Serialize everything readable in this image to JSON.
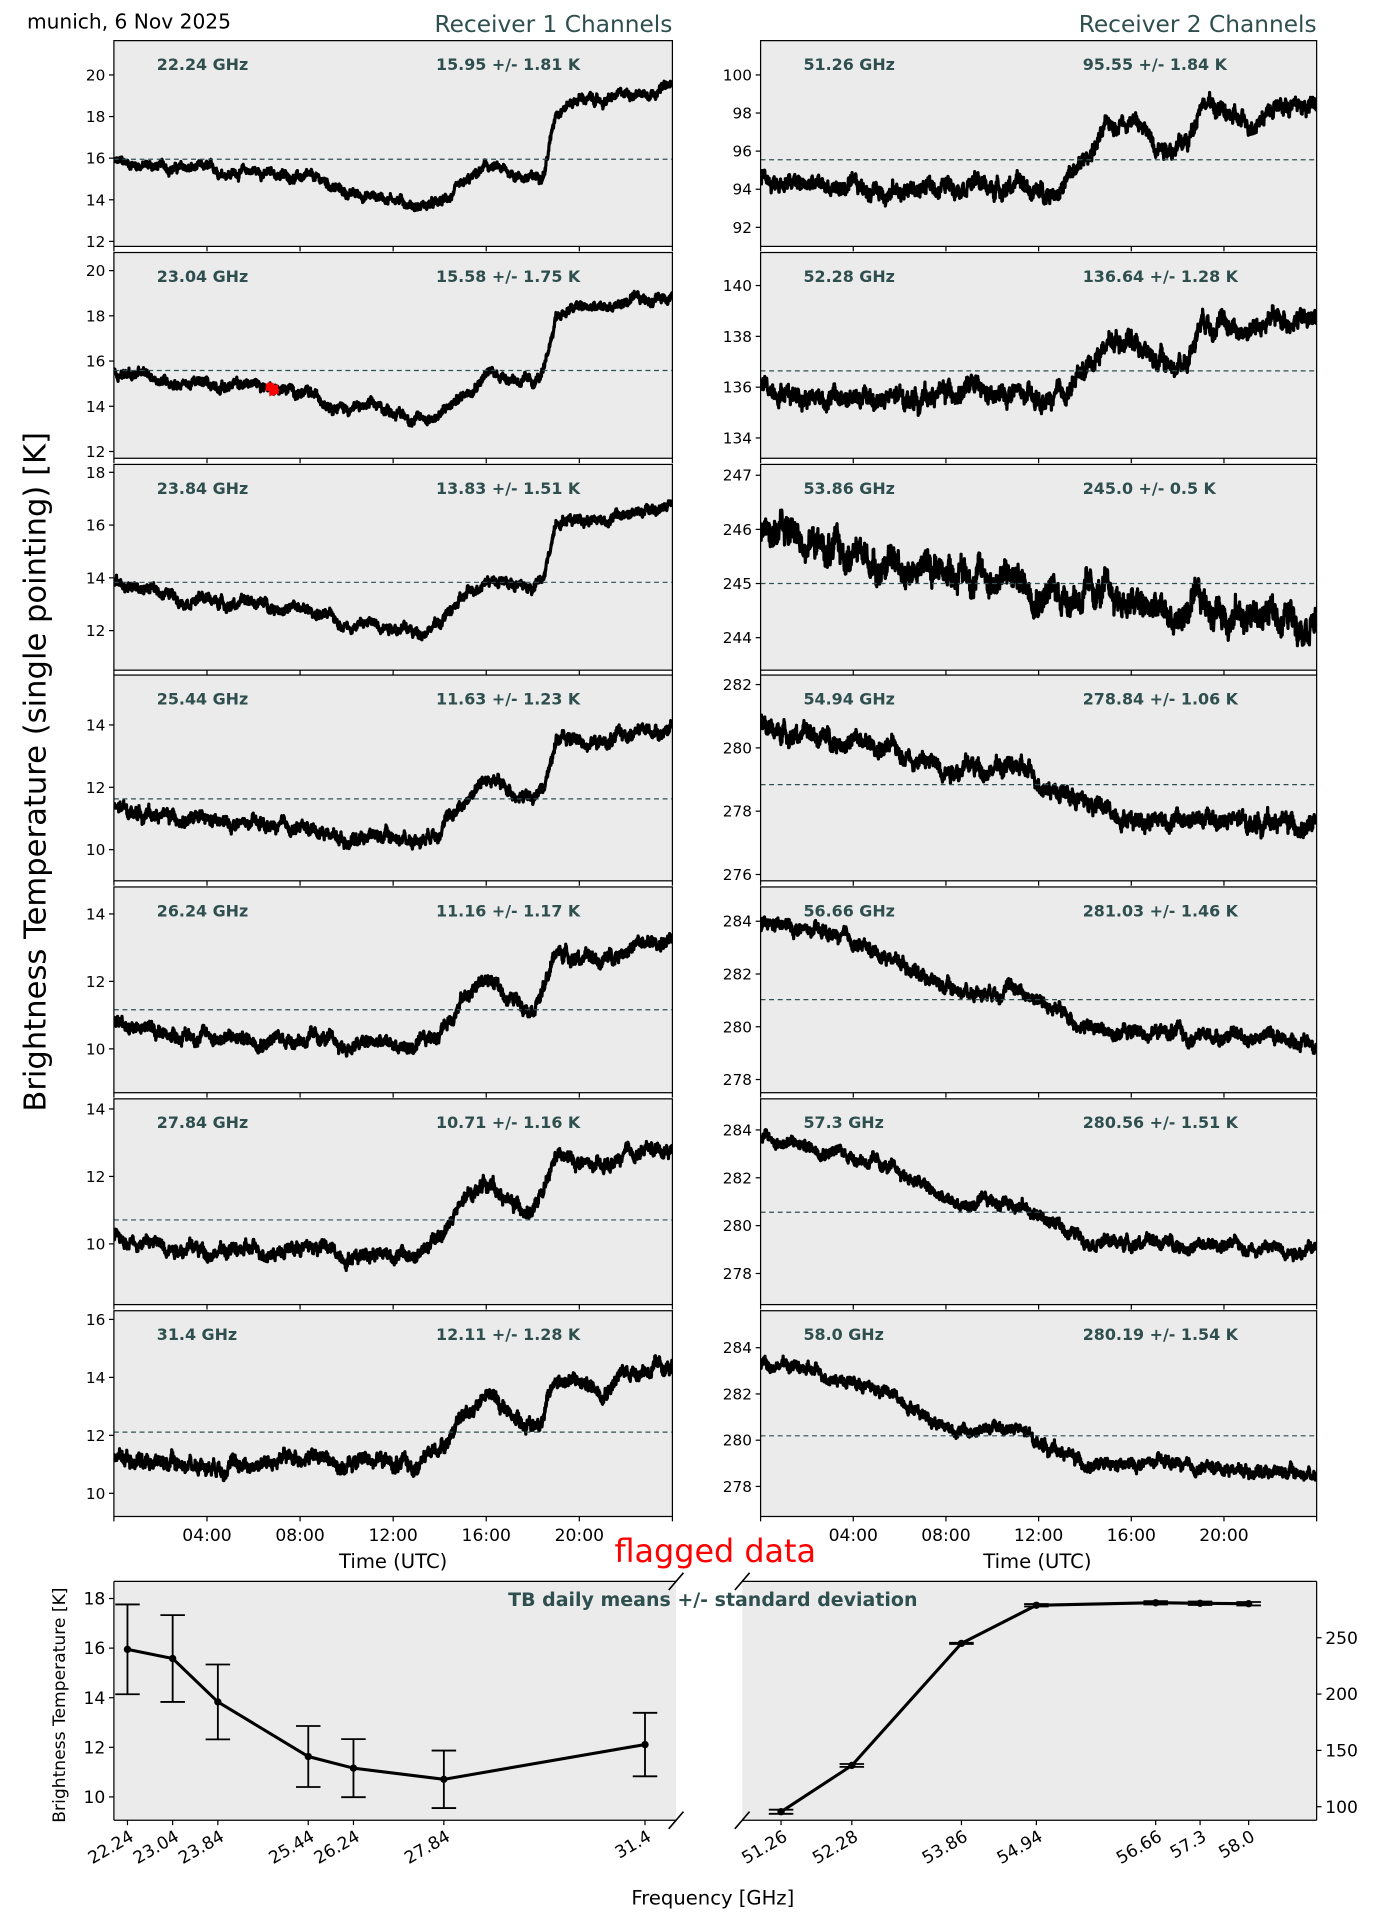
{
  "header": {
    "location_date": "munich, 6 Nov 2025",
    "receiver1_title": "Receiver 1 Channels",
    "receiver2_title": "Receiver 2 Channels"
  },
  "labels": {
    "ylabel_main": "Brightness Temperature (single pointing) [K]",
    "xlabel_time": "Time (UTC)",
    "flagged": "flagged data",
    "summary_title": "TB daily means +/- standard deviation",
    "summary_ylabel": "Brightness Temperature [K]",
    "summary_xlabel": "Frequency [GHz]"
  },
  "colors": {
    "text_accent": "#2f4f4f",
    "flagged": "#ff0000",
    "panel_bg": "#ebebeb",
    "data": "#000000"
  },
  "chart_data": [
    {
      "type": "line",
      "receiver": 1,
      "freq_label": "22.24 GHz",
      "stats_label": "15.95 +/- 1.81 K",
      "mean": 15.95,
      "ylim": [
        11.76,
        21.65
      ],
      "yticks": [
        12,
        14,
        16,
        18,
        20
      ],
      "noise": 0.18,
      "values": [
        15.8,
        15.7,
        15.6,
        15.5,
        15.5,
        15.3,
        15.4,
        15.2,
        15.1,
        14.9,
        14.3,
        14.2,
        14.1,
        13.7,
        13.8,
        14.6,
        15.6,
        15.3,
        15.0,
        15.4,
        18.3,
        18.9,
        18.7,
        19.1,
        19.2,
        19.5
      ]
    },
    {
      "type": "line",
      "receiver": 1,
      "freq_label": "23.04 GHz",
      "stats_label": "15.58 +/- 1.75 K",
      "mean": 15.58,
      "ylim": [
        11.7,
        20.8
      ],
      "yticks": [
        12,
        14,
        16,
        18,
        20
      ],
      "noise": 0.18,
      "flagged_hours": [
        6.6,
        7.0
      ],
      "values": [
        15.5,
        15.4,
        15.2,
        15.0,
        15.0,
        14.9,
        15.0,
        14.8,
        14.6,
        14.3,
        13.9,
        14.0,
        13.8,
        13.4,
        13.6,
        14.5,
        15.5,
        15.3,
        15.0,
        15.5,
        18.0,
        18.4,
        18.3,
        18.6,
        18.7,
        19.0
      ]
    },
    {
      "type": "line",
      "receiver": 1,
      "freq_label": "23.84 GHz",
      "stats_label": "13.83 +/- 1.51 K",
      "mean": 13.83,
      "ylim": [
        10.5,
        18.3
      ],
      "yticks": [
        12,
        14,
        16,
        18
      ],
      "noise": 0.16,
      "values": [
        13.8,
        13.6,
        13.5,
        13.2,
        13.2,
        13.0,
        13.1,
        12.9,
        12.8,
        12.6,
        12.2,
        12.3,
        12.2,
        11.9,
        12.3,
        13.2,
        14.0,
        13.8,
        13.6,
        14.0,
        16.2,
        16.3,
        16.2,
        16.4,
        16.5,
        16.8
      ]
    },
    {
      "type": "line",
      "receiver": 1,
      "freq_label": "25.44 GHz",
      "stats_label": "11.63 +/- 1.23 K",
      "mean": 11.63,
      "ylim": [
        9.0,
        15.6
      ],
      "yticks": [
        10,
        12,
        14
      ],
      "noise": 0.16,
      "values": [
        11.3,
        11.2,
        11.1,
        11.0,
        10.9,
        10.8,
        10.8,
        10.7,
        10.7,
        10.6,
        10.3,
        10.5,
        10.4,
        10.3,
        10.7,
        11.5,
        12.3,
        11.9,
        11.6,
        12.0,
        13.6,
        13.5,
        13.4,
        13.7,
        13.8,
        13.9
      ]
    },
    {
      "type": "line",
      "receiver": 1,
      "freq_label": "26.24 GHz",
      "stats_label": "11.16 +/- 1.17 K",
      "mean": 11.16,
      "ylim": [
        8.7,
        14.8
      ],
      "yticks": [
        10,
        12,
        14
      ],
      "noise": 0.16,
      "values": [
        10.8,
        10.7,
        10.5,
        10.4,
        10.4,
        10.3,
        10.3,
        10.3,
        10.3,
        10.3,
        10.0,
        10.2,
        10.1,
        10.0,
        10.5,
        11.5,
        12.1,
        11.5,
        11.3,
        11.8,
        12.9,
        12.7,
        12.6,
        13.0,
        13.1,
        13.2
      ]
    },
    {
      "type": "line",
      "receiver": 1,
      "freq_label": "27.84 GHz",
      "stats_label": "10.71 +/- 1.16 K",
      "mean": 10.71,
      "ylim": [
        8.2,
        14.3
      ],
      "yticks": [
        10,
        12,
        14
      ],
      "noise": 0.16,
      "values": [
        10.2,
        10.1,
        10.0,
        9.9,
        9.8,
        9.8,
        9.8,
        9.8,
        9.9,
        9.9,
        9.6,
        9.8,
        9.7,
        9.6,
        10.2,
        11.2,
        11.9,
        11.2,
        11.0,
        11.5,
        12.6,
        12.4,
        12.2,
        12.6,
        12.8,
        12.8
      ]
    },
    {
      "type": "line",
      "receiver": 1,
      "freq_label": "31.4 GHz",
      "stats_label": "12.11 +/- 1.28 K",
      "mean": 12.11,
      "ylim": [
        9.2,
        16.3
      ],
      "yticks": [
        10,
        12,
        14,
        16
      ],
      "noise": 0.2,
      "values": [
        11.3,
        11.2,
        11.1,
        11.0,
        11.0,
        11.0,
        11.0,
        11.1,
        11.3,
        11.2,
        10.9,
        11.3,
        11.0,
        10.9,
        11.6,
        12.6,
        13.5,
        12.8,
        12.3,
        12.8,
        14.0,
        13.8,
        13.6,
        14.2,
        14.3,
        14.3
      ]
    },
    {
      "type": "line",
      "receiver": 2,
      "freq_label": "51.26 GHz",
      "stats_label": "95.55 +/- 1.84 K",
      "mean": 95.55,
      "ylim": [
        91.0,
        101.8
      ],
      "yticks": [
        92,
        94,
        96,
        98,
        100
      ],
      "noise": 0.35,
      "values": [
        94.4,
        94.3,
        94.2,
        94.1,
        94.0,
        94.0,
        93.9,
        94.0,
        94.2,
        94.5,
        94.0,
        94.3,
        93.8,
        94.1,
        95.5,
        97.3,
        97.8,
        96.5,
        96.2,
        96.5,
        98.8,
        98.0,
        97.3,
        98.3,
        98.4,
        98.3
      ]
    },
    {
      "type": "line",
      "receiver": 2,
      "freq_label": "52.28 GHz",
      "stats_label": "136.64 +/- 1.28 K",
      "mean": 136.64,
      "ylim": [
        133.2,
        141.3
      ],
      "yticks": [
        134,
        136,
        138,
        140
      ],
      "noise": 0.3,
      "values": [
        136.0,
        135.9,
        135.7,
        135.6,
        135.5,
        135.5,
        135.5,
        135.6,
        135.8,
        136.0,
        135.5,
        135.8,
        135.3,
        135.6,
        136.7,
        137.8,
        138.0,
        137.1,
        136.8,
        137.2,
        138.8,
        138.5,
        138.2,
        138.6,
        138.7,
        138.6
      ]
    },
    {
      "type": "line",
      "receiver": 2,
      "freq_label": "53.86 GHz",
      "stats_label": "245.0 +/- 0.5 K",
      "mean": 245.0,
      "ylim": [
        243.4,
        247.2
      ],
      "yticks": [
        244,
        245,
        246,
        247
      ],
      "noise": 0.22,
      "values": [
        246.1,
        246.0,
        245.8,
        245.6,
        245.5,
        245.4,
        245.3,
        245.3,
        245.3,
        245.2,
        245.1,
        245.1,
        244.9,
        244.8,
        244.8,
        244.8,
        244.6,
        244.5,
        244.3,
        244.5,
        244.6,
        244.5,
        244.4,
        244.4,
        244.4,
        244.4
      ]
    },
    {
      "type": "line",
      "receiver": 2,
      "freq_label": "54.94 GHz",
      "stats_label": "278.84 +/- 1.06 K",
      "mean": 278.84,
      "ylim": [
        275.8,
        282.3
      ],
      "yticks": [
        276,
        278,
        280,
        282
      ],
      "noise": 0.22,
      "values": [
        280.6,
        280.5,
        280.4,
        280.3,
        280.2,
        280.0,
        279.9,
        279.6,
        279.4,
        279.4,
        279.4,
        279.4,
        279.0,
        278.6,
        278.3,
        278.0,
        277.8,
        277.8,
        277.7,
        277.7,
        277.7,
        277.7,
        277.6,
        277.7,
        277.6,
        277.5
      ]
    },
    {
      "type": "line",
      "receiver": 2,
      "freq_label": "56.66 GHz",
      "stats_label": "281.03 +/- 1.46 K",
      "mean": 281.03,
      "ylim": [
        277.5,
        285.3
      ],
      "yticks": [
        278,
        280,
        282,
        284
      ],
      "noise": 0.2,
      "values": [
        283.8,
        283.8,
        283.6,
        283.5,
        283.2,
        282.8,
        282.5,
        282.0,
        281.5,
        281.3,
        281.4,
        281.5,
        281.0,
        280.5,
        280.0,
        279.8,
        279.8,
        279.8,
        279.8,
        279.5,
        279.6,
        279.7,
        279.6,
        279.7,
        279.5,
        279.4
      ]
    },
    {
      "type": "line",
      "receiver": 2,
      "freq_label": "57.3 GHz",
      "stats_label": "280.56 +/- 1.51 K",
      "mean": 280.56,
      "ylim": [
        276.7,
        285.3
      ],
      "yticks": [
        278,
        280,
        282,
        284
      ],
      "noise": 0.2,
      "values": [
        283.6,
        283.5,
        283.3,
        283.2,
        282.9,
        282.6,
        282.2,
        281.7,
        281.0,
        280.8,
        281.0,
        281.0,
        280.4,
        279.9,
        279.5,
        279.3,
        279.3,
        279.3,
        279.3,
        279.1,
        279.1,
        279.2,
        279.1,
        279.1,
        279.0,
        279.0
      ]
    },
    {
      "type": "line",
      "receiver": 2,
      "freq_label": "58.0 GHz",
      "stats_label": "280.19 +/- 1.54 K",
      "mean": 280.19,
      "ylim": [
        276.7,
        285.6
      ],
      "yticks": [
        278,
        280,
        282,
        284
      ],
      "noise": 0.2,
      "values": [
        283.4,
        283.3,
        283.0,
        282.8,
        282.5,
        282.2,
        281.8,
        281.2,
        280.6,
        280.3,
        280.5,
        280.5,
        279.9,
        279.5,
        279.0,
        278.8,
        278.9,
        279.0,
        279.0,
        278.7,
        278.8,
        278.8,
        278.7,
        278.7,
        278.6,
        278.5
      ]
    },
    {
      "type": "line",
      "title": "TB daily means +/- standard deviation",
      "xlabel": "Frequency [GHz]",
      "ylabel": "Brightness Temperature [K]",
      "broken_x_axis": true,
      "left": {
        "x": [
          22.24,
          23.04,
          23.84,
          25.44,
          26.24,
          27.84,
          31.4
        ],
        "xticklabels": [
          "22.24",
          "23.04",
          "23.84",
          "25.44",
          "26.24",
          "27.84",
          "31.4"
        ],
        "y": [
          15.95,
          15.58,
          13.83,
          11.63,
          11.16,
          10.71,
          12.11
        ],
        "err": [
          1.81,
          1.75,
          1.51,
          1.23,
          1.17,
          1.16,
          1.28
        ],
        "xlim": [
          22.0,
          31.95
        ],
        "ylim": [
          9.06,
          18.69
        ],
        "yticks": [
          10,
          12,
          14,
          16,
          18
        ]
      },
      "right": {
        "x": [
          51.26,
          52.28,
          53.86,
          54.94,
          56.66,
          57.3,
          58.0
        ],
        "xticklabels": [
          "51.26",
          "52.28",
          "53.86",
          "54.94",
          "56.66",
          "57.3",
          "58.0"
        ],
        "y": [
          95.55,
          136.64,
          245.0,
          278.84,
          281.03,
          280.56,
          280.19
        ],
        "err": [
          1.84,
          1.28,
          0.5,
          1.06,
          1.46,
          1.51,
          1.54
        ],
        "xlim": [
          50.7,
          58.98
        ],
        "ylim": [
          88,
          300
        ],
        "yticks": [
          100,
          150,
          200,
          250
        ]
      }
    }
  ],
  "time_axis": {
    "hours": [
      0,
      1,
      2,
      3,
      4,
      5,
      6,
      7,
      8,
      9,
      10,
      11,
      12,
      13,
      14,
      15,
      16,
      17,
      18,
      18.5,
      19,
      20,
      21,
      22,
      23,
      24
    ],
    "xlim_hours": [
      0,
      24
    ],
    "tick_hours": [
      4,
      8,
      12,
      16,
      20
    ],
    "tick_labels": [
      "04:00",
      "08:00",
      "12:00",
      "16:00",
      "20:00"
    ]
  }
}
